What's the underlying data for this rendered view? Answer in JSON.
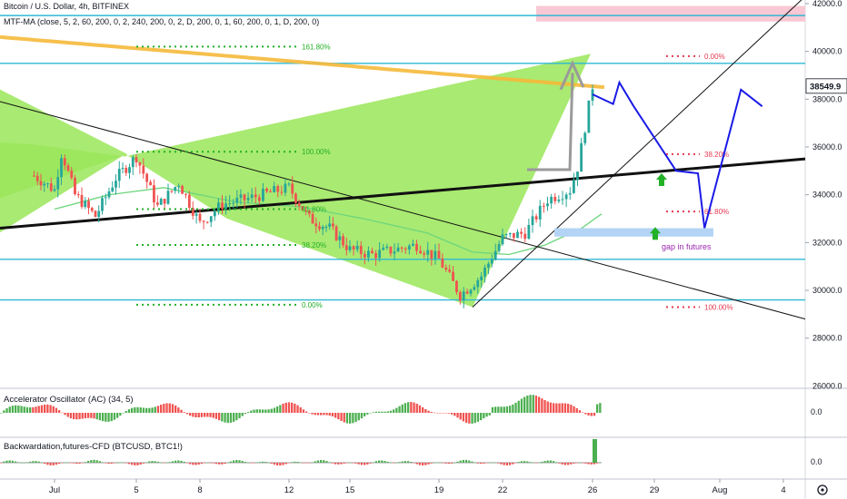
{
  "header": {
    "title": "Bitcoin / U.S. Dollar, 4h, BITFINEX",
    "indicator": "MTF-MA (close, 5, 2, 60, 200, 0, 2, 240, 200, 0, 2, D, 200, 0, 1, 60, 200, 0, 1, D, 200, 0)"
  },
  "colors": {
    "up": "#26a69a",
    "down": "#ef5350",
    "fib_green": "#22b026",
    "fib_red": "#e53950",
    "level_line": "#2fb8d4",
    "pattern_fill": "#9ae659",
    "trend_black": "#111111",
    "projection": "#1a1ae6",
    "ma_orange": "#f5b93a",
    "ma_green": "#6cd67c",
    "gap_box": "#b3d4f5",
    "arrow_green": "#22b026",
    "marker_pink": "#f8c8d4",
    "oscillator_green": "#4caf50",
    "oscillator_red": "#ef5350"
  },
  "chart_data": {
    "type": "candlestick",
    "symbol": "BTCUSD",
    "exchange": "BITFINEX",
    "timeframe": "4h",
    "price_axis": {
      "ticks": [
        28000,
        30000,
        32000,
        34000,
        36000,
        38000,
        40000,
        42000
      ],
      "extra_tick": 26000,
      "ylim": [
        25900,
        42150
      ],
      "current_price_label": "38549.9",
      "current_price": 38549.9
    },
    "time_axis": {
      "ticks": [
        "Jul",
        "5",
        "8",
        "12",
        "15",
        "19",
        "22",
        "26",
        "29",
        "Aug",
        "4"
      ],
      "tick_dates": [
        "2021-07-01",
        "2021-07-05",
        "2021-07-08",
        "2021-07-12",
        "2021-07-15",
        "2021-07-19",
        "2021-07-22",
        "2021-07-26",
        "2021-07-29",
        "2021-08-01",
        "2021-08-04"
      ]
    },
    "price_path": [
      {
        "date": "2021-06-30",
        "price": 34800
      },
      {
        "date": "2021-07-01",
        "price": 34200
      },
      {
        "date": "2021-07-01",
        "price": 35800
      },
      {
        "date": "2021-07-02",
        "price": 34000
      },
      {
        "date": "2021-07-03",
        "price": 33100
      },
      {
        "date": "2021-07-04",
        "price": 34700
      },
      {
        "date": "2021-07-05",
        "price": 35600
      },
      {
        "date": "2021-07-06",
        "price": 33500
      },
      {
        "date": "2021-07-07",
        "price": 34500
      },
      {
        "date": "2021-07-08",
        "price": 32800
      },
      {
        "date": "2021-07-09",
        "price": 33600
      },
      {
        "date": "2021-07-10",
        "price": 33800
      },
      {
        "date": "2021-07-12",
        "price": 34300
      },
      {
        "date": "2021-07-13",
        "price": 33000
      },
      {
        "date": "2021-07-14",
        "price": 32600
      },
      {
        "date": "2021-07-15",
        "price": 31700
      },
      {
        "date": "2021-07-16",
        "price": 31500
      },
      {
        "date": "2021-07-18",
        "price": 31900
      },
      {
        "date": "2021-07-19",
        "price": 31300
      },
      {
        "date": "2021-07-20",
        "price": 29800
      },
      {
        "date": "2021-07-21",
        "price": 30600
      },
      {
        "date": "2021-07-22",
        "price": 32200
      },
      {
        "date": "2021-07-23",
        "price": 32400
      },
      {
        "date": "2021-07-24",
        "price": 33800
      },
      {
        "date": "2021-07-25",
        "price": 34200
      },
      {
        "date": "2021-07-25",
        "price": 35200
      },
      {
        "date": "2021-07-26",
        "price": 38549.9
      }
    ],
    "levels": [
      41500,
      39500,
      31300,
      29600
    ],
    "fibonacci_left": [
      {
        "label": "161.80%",
        "price": 40200
      },
      {
        "label": "100.00%",
        "price": 35800
      },
      {
        "label": "61.80%",
        "price": 33400
      },
      {
        "label": "38.20%",
        "price": 31900
      },
      {
        "label": "0.00%",
        "price": 29400
      }
    ],
    "fibonacci_right": [
      {
        "label": "0.00%",
        "price": 39800
      },
      {
        "label": "38.20%",
        "price": 35700
      },
      {
        "label": "61.80%",
        "price": 33300
      },
      {
        "label": "100.00%",
        "price": 29300
      }
    ],
    "projection_path": [
      {
        "date": "2021-07-26",
        "price": 38200
      },
      {
        "date": "2021-07-27",
        "price": 37800
      },
      {
        "date": "2021-07-27",
        "price": 38700
      },
      {
        "date": "2021-07-28",
        "price": 37700
      },
      {
        "date": "2021-07-30",
        "price": 35000
      },
      {
        "date": "2021-07-31",
        "price": 34900
      },
      {
        "date": "2021-07-31",
        "price": 32600
      },
      {
        "date": "2021-08-02",
        "price": 38400
      },
      {
        "date": "2021-08-03",
        "price": 37700
      }
    ],
    "annotations": [
      {
        "text": "gap in futures"
      }
    ],
    "panes": [
      {
        "name": "Accelerator Oscillator (AC) (34, 5)",
        "axis_label": "0.0"
      },
      {
        "name": "Backwardation,futures-CFD (BTCUSD, BTC1!)",
        "axis_label": "0.0"
      }
    ]
  }
}
